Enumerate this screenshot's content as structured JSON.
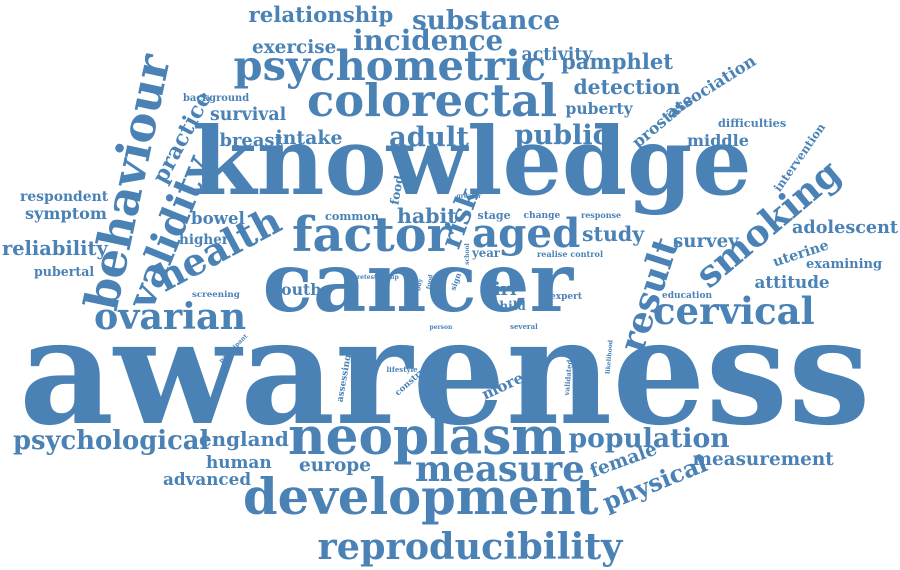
{
  "word_color": "#4a82b6",
  "background": "#ffffff",
  "words": [
    "awareness",
    "cancer",
    "knowledge",
    "development",
    "neoplasm",
    "colorectal",
    "psychometric",
    "factor",
    "aged",
    "behaviour",
    "health",
    "measure",
    "reproducibility",
    "cervical",
    "ovarian",
    "population",
    "relationship",
    "substance",
    "incidence",
    "public",
    "adult",
    "smoking",
    "validity",
    "psychological",
    "england",
    "prostate",
    "study",
    "result",
    "practice",
    "pamphlet",
    "detection",
    "association",
    "survival",
    "intake",
    "breast",
    "puberty",
    "middle",
    "reliability",
    "adolescent",
    "attitude",
    "physical",
    "measurement",
    "exercise",
    "activity",
    "risk",
    "bowel",
    "respondent",
    "symptom",
    "survey",
    "uterine",
    "examining",
    "female",
    "human",
    "advanced",
    "europe",
    "higher",
    "pubertal",
    "youth",
    "more",
    "girl",
    "intervention",
    "difficulties",
    "food",
    "habit",
    "construct",
    "assessing",
    "validated",
    "background",
    "common",
    "stage",
    "change",
    "response",
    "greater",
    "year",
    "realise control",
    "child",
    "expert",
    "education",
    "screening",
    "participant",
    "lifestyle",
    "likelihood",
    "several",
    "person",
    "retest group",
    "buy",
    "sign",
    "school",
    "food"
  ]
}
